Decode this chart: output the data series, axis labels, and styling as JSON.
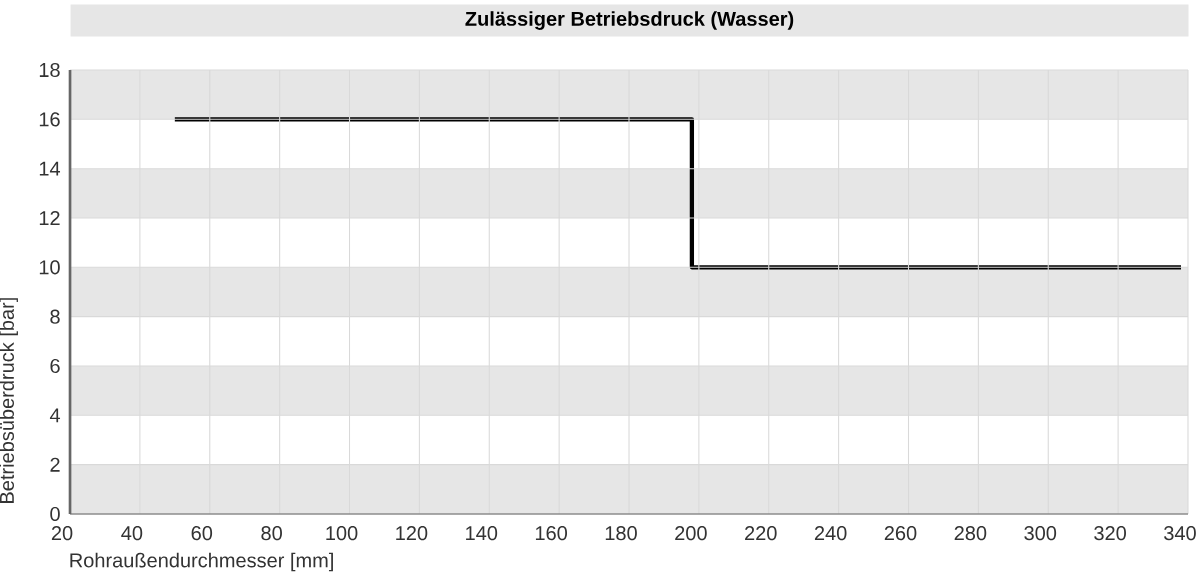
{
  "chart_data": {
    "type": "line",
    "title": "Zulässiger Betriebsdruck (Wasser)",
    "xlabel": "Rohraußendurchmesser [mm]",
    "ylabel": "Betriebsüberdruck [bar]",
    "x": [
      50,
      198,
      198,
      338
    ],
    "series": [
      {
        "color": "#000000",
        "values": [
          16,
          16,
          10,
          10
        ]
      }
    ],
    "xlim": [
      20,
      340
    ],
    "ylim": [
      0,
      18
    ],
    "xticks": [
      20,
      40,
      60,
      80,
      100,
      120,
      140,
      160,
      180,
      200,
      220,
      240,
      260,
      280,
      300,
      320,
      340
    ],
    "yticks": [
      0,
      2,
      4,
      6,
      8,
      10,
      12,
      14,
      16,
      18
    ],
    "grid": true,
    "marker": "none",
    "line_style": "solid"
  }
}
